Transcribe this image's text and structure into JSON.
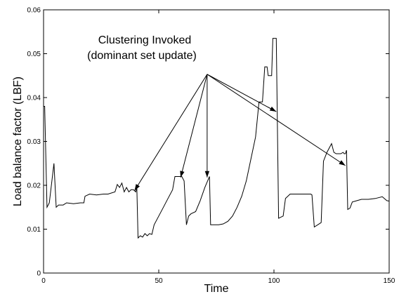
{
  "chart_data": {
    "type": "line",
    "xlabel": "Time",
    "ylabel": "Load balance factor (LBF)",
    "xlim": [
      0,
      150
    ],
    "ylim": [
      0,
      0.06
    ],
    "xticks": [
      0,
      50,
      100,
      150
    ],
    "xtick_labels": [
      "0",
      "50",
      "100",
      "150"
    ],
    "yticks": [
      0,
      0.01,
      0.02,
      0.03,
      0.04,
      0.05,
      0.06
    ],
    "ytick_labels": [
      "0",
      "0.01",
      "0.02",
      "0.03",
      "0.04",
      "0.05",
      "0.06"
    ],
    "grid": false,
    "series": [
      {
        "color": "#000000",
        "points": [
          [
            0,
            0.038
          ],
          [
            0.5,
            0.038
          ],
          [
            1.5,
            0.015
          ],
          [
            2.5,
            0.016
          ],
          [
            4.5,
            0.025
          ],
          [
            5.5,
            0.015
          ],
          [
            6.5,
            0.0155
          ],
          [
            8.5,
            0.0155
          ],
          [
            10,
            0.016
          ],
          [
            13,
            0.0158
          ],
          [
            16,
            0.016
          ],
          [
            17.5,
            0.016
          ],
          [
            18,
            0.0175
          ],
          [
            20,
            0.018
          ],
          [
            23,
            0.0178
          ],
          [
            26,
            0.018
          ],
          [
            28,
            0.018
          ],
          [
            31,
            0.0185
          ],
          [
            32,
            0.0202
          ],
          [
            33,
            0.0195
          ],
          [
            34,
            0.0205
          ],
          [
            35,
            0.0185
          ],
          [
            36,
            0.0195
          ],
          [
            37,
            0.0185
          ],
          [
            38,
            0.019
          ],
          [
            39,
            0.019
          ],
          [
            40,
            0.0185
          ],
          [
            40.5,
            0.0195
          ],
          [
            41,
            0.008
          ],
          [
            42,
            0.0085
          ],
          [
            43,
            0.0082
          ],
          [
            44,
            0.009
          ],
          [
            45,
            0.0085
          ],
          [
            46,
            0.009
          ],
          [
            47,
            0.0088
          ],
          [
            48,
            0.011
          ],
          [
            50,
            0.013
          ],
          [
            52,
            0.015
          ],
          [
            54,
            0.017
          ],
          [
            56,
            0.019
          ],
          [
            57,
            0.022
          ],
          [
            60,
            0.022
          ],
          [
            61,
            0.021
          ],
          [
            62,
            0.011
          ],
          [
            63,
            0.013
          ],
          [
            64,
            0.0135
          ],
          [
            66,
            0.014
          ],
          [
            68,
            0.0165
          ],
          [
            70,
            0.0195
          ],
          [
            72,
            0.022
          ],
          [
            72.5,
            0.011
          ],
          [
            74,
            0.011
          ],
          [
            76,
            0.011
          ],
          [
            78,
            0.0112
          ],
          [
            80,
            0.0118
          ],
          [
            82,
            0.013
          ],
          [
            84,
            0.015
          ],
          [
            86,
            0.0175
          ],
          [
            88,
            0.021
          ],
          [
            90,
            0.026
          ],
          [
            92,
            0.031
          ],
          [
            93.5,
            0.039
          ],
          [
            95,
            0.039
          ],
          [
            96,
            0.047
          ],
          [
            97,
            0.047
          ],
          [
            97.5,
            0.045
          ],
          [
            99,
            0.045
          ],
          [
            99.5,
            0.0535
          ],
          [
            101,
            0.0535
          ],
          [
            102,
            0.0125
          ],
          [
            104,
            0.013
          ],
          [
            105,
            0.017
          ],
          [
            107,
            0.018
          ],
          [
            110,
            0.018
          ],
          [
            113,
            0.018
          ],
          [
            115,
            0.018
          ],
          [
            116,
            0.018
          ],
          [
            116.5,
            0.0178
          ],
          [
            117.5,
            0.0105
          ],
          [
            119,
            0.011
          ],
          [
            120.5,
            0.0115
          ],
          [
            121.5,
            0.0255
          ],
          [
            123,
            0.0275
          ],
          [
            125,
            0.0295
          ],
          [
            126,
            0.0275
          ],
          [
            127,
            0.0272
          ],
          [
            129,
            0.0272
          ],
          [
            130,
            0.0275
          ],
          [
            130.5,
            0.0272
          ],
          [
            131,
            0.0272
          ],
          [
            131.5,
            0.028
          ],
          [
            132,
            0.0145
          ],
          [
            133,
            0.0148
          ],
          [
            134,
            0.0162
          ],
          [
            136,
            0.0165
          ],
          [
            138,
            0.0168
          ],
          [
            141,
            0.0168
          ],
          [
            144,
            0.017
          ],
          [
            147,
            0.0174
          ],
          [
            149,
            0.0165
          ],
          [
            150,
            0.0164
          ]
        ]
      }
    ],
    "annotation": {
      "lines": [
        "Clustering Invoked",
        "(dominant set update)"
      ],
      "origin": [
        71,
        0.0453
      ],
      "targets": [
        [
          39.5,
          0.0188
        ],
        [
          59.5,
          0.0218
        ],
        [
          71,
          0.0218
        ],
        [
          101,
          0.0368
        ],
        [
          131,
          0.0245
        ]
      ]
    }
  }
}
